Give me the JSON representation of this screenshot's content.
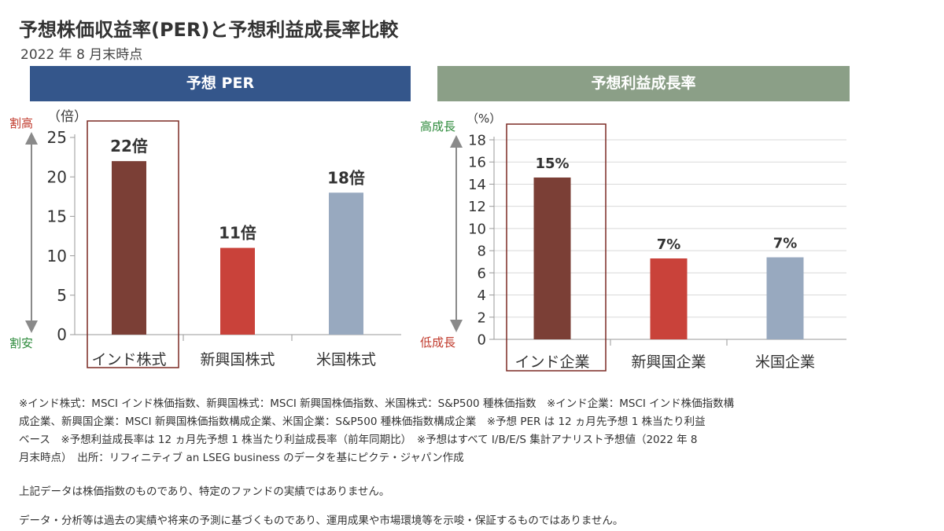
{
  "header": {
    "title": "予想株価収益率(PER)と予想利益成長率比較",
    "subtitle": "2022 年 8 月末時点"
  },
  "panels": {
    "left": {
      "banner": "予想 PER",
      "unit": "（倍）",
      "high_label": "割高",
      "low_label": "割安",
      "high_color": "#c0392b",
      "low_color": "#2e8b3c"
    },
    "right": {
      "banner": "予想利益成長率",
      "unit": "（%）",
      "high_label": "高成長",
      "low_label": "低成長",
      "high_color": "#2e8b3c",
      "low_color": "#c0392b"
    }
  },
  "colors": {
    "bar": [
      "#7b3f36",
      "#c9423a",
      "#98a9bf"
    ],
    "highlight_box": "#7b2a24",
    "banner_left": "#34568b",
    "banner_right": "#8b9f87"
  },
  "chart_data": [
    {
      "type": "bar",
      "title": "予想 PER",
      "categories": [
        "インド株式",
        "新興国株式",
        "米国株式"
      ],
      "values": [
        22,
        11,
        18
      ],
      "data_labels": [
        "22倍",
        "11倍",
        "18倍"
      ],
      "ylabel": "（倍）",
      "ylim": [
        0,
        25
      ],
      "yticks": [
        0,
        5,
        10,
        15,
        20,
        25
      ],
      "highlight_category": "インド株式",
      "grid": false
    },
    {
      "type": "bar",
      "title": "予想利益成長率",
      "categories": [
        "インド企業",
        "新興国企業",
        "米国企業"
      ],
      "values": [
        14.6,
        7.3,
        7.4
      ],
      "data_labels": [
        "15%",
        "7%",
        "7%"
      ],
      "ylabel": "（%）",
      "ylim": [
        0,
        18
      ],
      "yticks": [
        0,
        2,
        4,
        6,
        8,
        10,
        12,
        14,
        16,
        18
      ],
      "highlight_category": "インド企業",
      "grid": true
    }
  ],
  "footnotes": {
    "lines": [
      "※インド株式：MSCI インド株価指数、新興国株式：MSCI 新興国株価指数、米国株式：S&P500 種株価指数　※インド企業：MSCI インド株価指数構",
      "成企業、新興国企業：MSCI 新興国株価指数構成企業、米国企業：S&P500 種株価指数構成企業　※予想 PER は 12 ヵ月先予想 1 株当たり利益",
      "ベース　※予想利益成長率は 12 ヵ月先予想 1 株当たり利益成長率（前年同期比）　※予想はすべて I/B/E/S 集計アナリスト予想値（2022 年 8",
      "月末時点）　出所：リフィニティブ an LSEG business のデータを基にピクテ・ジャパン作成"
    ],
    "disclaimer1": "上記データは株価指数のものであり、特定のファンドの実績ではありません。",
    "disclaimer2": "データ・分析等は過去の実績や将来の予測に基づくものであり、運用成果や市場環境等を示唆・保証するものではありません。"
  }
}
